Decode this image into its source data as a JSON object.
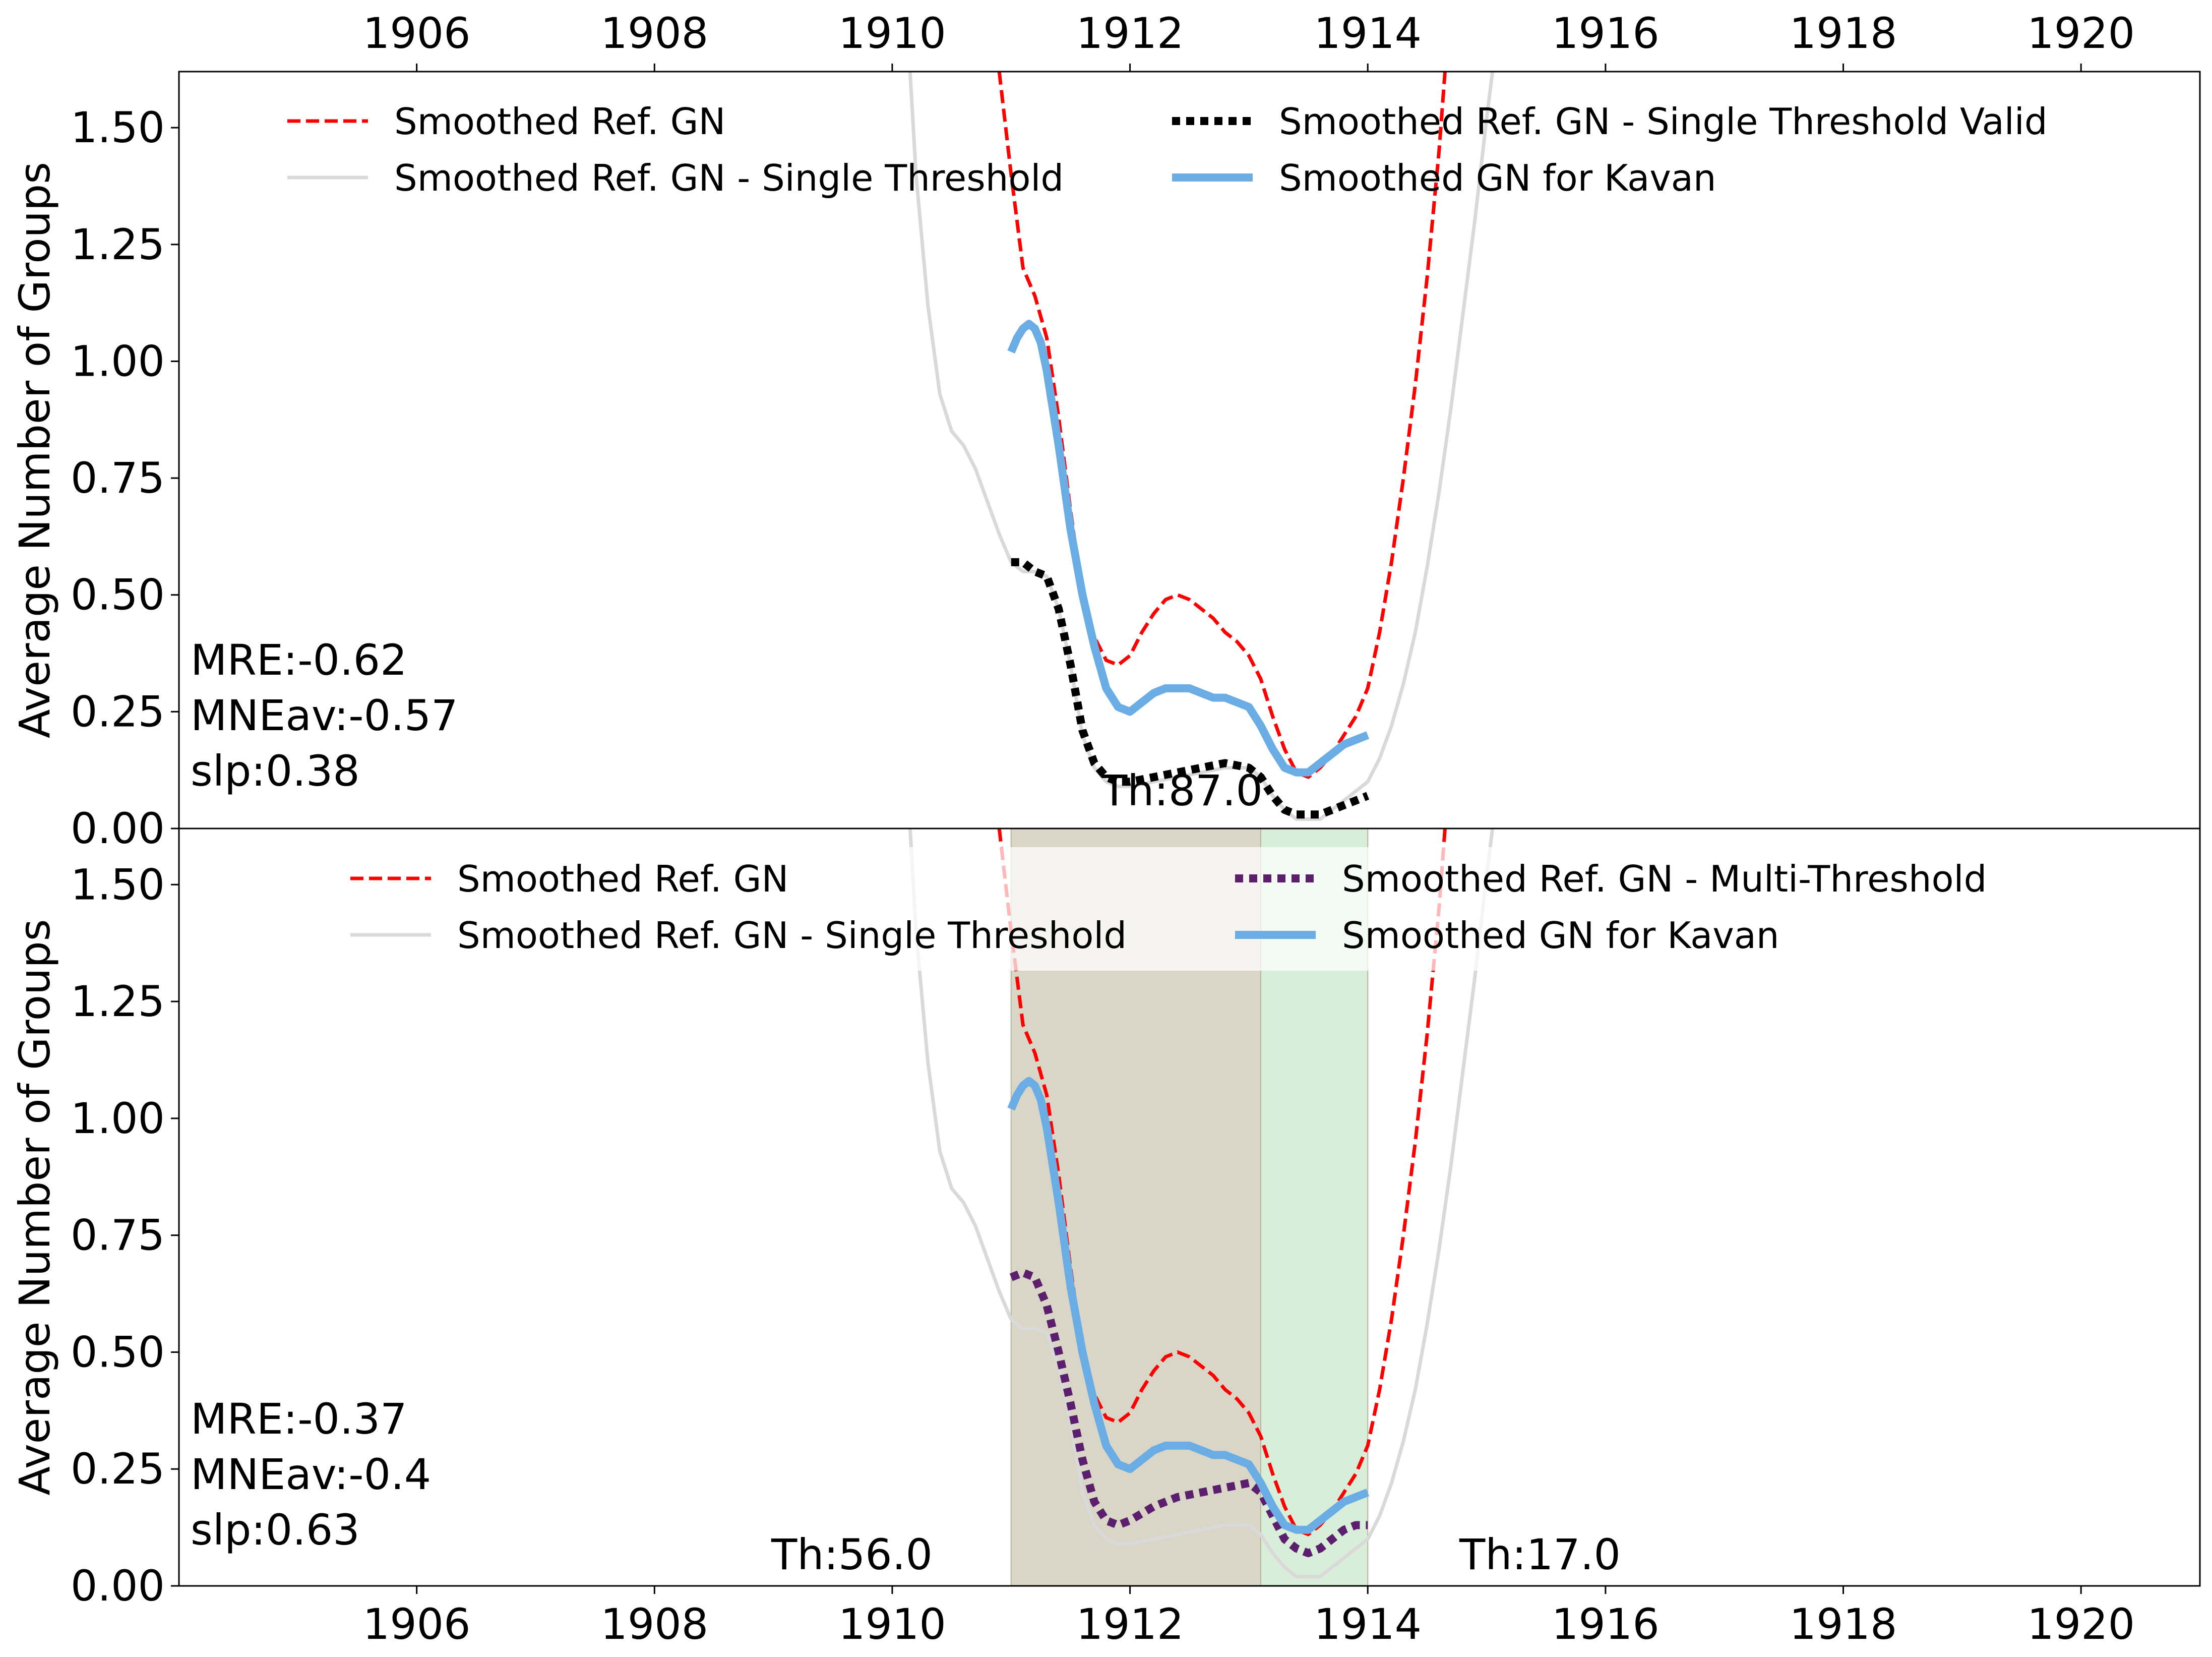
{
  "chart_data": [
    {
      "type": "line",
      "ylabel": "Average Number of Groups",
      "xlim": [
        1904,
        1921
      ],
      "ylim": [
        0,
        1.62
      ],
      "x_ticks": [
        1906,
        1908,
        1910,
        1912,
        1914,
        1916,
        1918,
        1920
      ],
      "y_ticks": [
        "0.00",
        "0.25",
        "0.50",
        "0.75",
        "1.00",
        "1.25",
        "1.50"
      ],
      "legend_position": "top",
      "series": [
        {
          "name": "Smoothed Ref. GN",
          "color": "#ff0000",
          "style": "dashed",
          "x": [
            1910.9,
            1911.0,
            1911.1,
            1911.2,
            1911.3,
            1911.4,
            1911.5,
            1911.6,
            1911.7,
            1911.8,
            1911.9,
            1912.0,
            1912.1,
            1912.2,
            1912.3,
            1912.4,
            1912.5,
            1912.6,
            1912.7,
            1912.8,
            1912.9,
            1913.0,
            1913.1,
            1913.2,
            1913.3,
            1913.4,
            1913.5,
            1913.6,
            1913.7,
            1913.8,
            1913.9,
            1914.0,
            1914.1,
            1914.2,
            1914.3,
            1914.4,
            1914.5,
            1914.6,
            1914.65
          ],
          "y": [
            1.62,
            1.4,
            1.2,
            1.14,
            1.05,
            0.88,
            0.68,
            0.5,
            0.41,
            0.36,
            0.35,
            0.37,
            0.42,
            0.46,
            0.49,
            0.5,
            0.49,
            0.47,
            0.45,
            0.42,
            0.4,
            0.37,
            0.32,
            0.24,
            0.17,
            0.12,
            0.11,
            0.13,
            0.16,
            0.2,
            0.24,
            0.3,
            0.42,
            0.57,
            0.75,
            0.95,
            1.18,
            1.45,
            1.62
          ]
        },
        {
          "name": "Smoothed Ref. GN - Single Threshold",
          "color": "#d9d9d9",
          "style": "solid",
          "x": [
            1910.15,
            1910.2,
            1910.3,
            1910.4,
            1910.5,
            1910.6,
            1910.7,
            1910.8,
            1910.9,
            1911.0,
            1911.1,
            1911.2,
            1911.3,
            1911.4,
            1911.5,
            1911.6,
            1911.7,
            1911.8,
            1911.9,
            1912.0,
            1912.2,
            1912.4,
            1912.6,
            1912.8,
            1913.0,
            1913.1,
            1913.2,
            1913.3,
            1913.4,
            1913.5,
            1913.6,
            1913.7,
            1913.8,
            1913.9,
            1914.0,
            1914.1,
            1914.2,
            1914.3,
            1914.4,
            1914.5,
            1914.6,
            1914.7,
            1914.8,
            1914.9,
            1915.0,
            1915.05
          ],
          "y": [
            1.62,
            1.4,
            1.12,
            0.93,
            0.85,
            0.82,
            0.77,
            0.7,
            0.63,
            0.57,
            0.55,
            0.55,
            0.54,
            0.47,
            0.35,
            0.2,
            0.13,
            0.1,
            0.09,
            0.09,
            0.1,
            0.11,
            0.12,
            0.13,
            0.13,
            0.11,
            0.07,
            0.04,
            0.02,
            0.02,
            0.02,
            0.04,
            0.06,
            0.08,
            0.1,
            0.15,
            0.22,
            0.31,
            0.42,
            0.56,
            0.72,
            0.9,
            1.1,
            1.3,
            1.52,
            1.62
          ]
        },
        {
          "name": "Smoothed Ref. GN - Single Threshold Valid",
          "color": "#000000",
          "style": "dotted",
          "x": [
            1911.0,
            1911.1,
            1911.2,
            1911.3,
            1911.4,
            1911.5,
            1911.6,
            1911.7,
            1911.8,
            1911.9,
            1912.0,
            1912.2,
            1912.4,
            1912.6,
            1912.8,
            1913.0,
            1913.1,
            1913.2,
            1913.3,
            1913.4,
            1913.5,
            1913.6,
            1913.7,
            1913.8,
            1913.9,
            1914.0
          ],
          "y": [
            0.57,
            0.57,
            0.55,
            0.54,
            0.47,
            0.35,
            0.21,
            0.14,
            0.11,
            0.1,
            0.1,
            0.11,
            0.12,
            0.13,
            0.14,
            0.13,
            0.11,
            0.07,
            0.04,
            0.03,
            0.03,
            0.03,
            0.04,
            0.05,
            0.06,
            0.07
          ]
        },
        {
          "name": "Smoothed GN for Kavan",
          "color": "#6aade4",
          "style": "solid-thick",
          "x": [
            1911.0,
            1911.05,
            1911.1,
            1911.15,
            1911.2,
            1911.25,
            1911.3,
            1911.4,
            1911.5,
            1911.6,
            1911.7,
            1911.8,
            1911.9,
            1912.0,
            1912.1,
            1912.2,
            1912.3,
            1912.4,
            1912.5,
            1912.6,
            1912.7,
            1912.8,
            1912.9,
            1913.0,
            1913.1,
            1913.2,
            1913.3,
            1913.4,
            1913.5,
            1913.6,
            1913.7,
            1913.8,
            1913.9,
            1914.0
          ],
          "y": [
            1.02,
            1.05,
            1.07,
            1.08,
            1.07,
            1.04,
            0.98,
            0.82,
            0.64,
            0.5,
            0.39,
            0.3,
            0.26,
            0.25,
            0.27,
            0.29,
            0.3,
            0.3,
            0.3,
            0.29,
            0.28,
            0.28,
            0.27,
            0.26,
            0.22,
            0.17,
            0.13,
            0.12,
            0.12,
            0.14,
            0.16,
            0.18,
            0.19,
            0.2
          ]
        }
      ],
      "annotations": [
        "MRE:-0.62",
        "MNEav:-0.57",
        "slp:0.38",
        "Th:87.0"
      ]
    },
    {
      "type": "line",
      "ylabel": "Average Number of Groups",
      "xlim": [
        1904,
        1921
      ],
      "ylim": [
        0,
        1.62
      ],
      "x_ticks": [
        1906,
        1908,
        1910,
        1912,
        1914,
        1916,
        1918,
        1920
      ],
      "y_ticks": [
        "0.00",
        "0.25",
        "0.50",
        "0.75",
        "1.00",
        "1.25",
        "1.50"
      ],
      "legend_position": "top",
      "shaded_regions": [
        {
          "x": [
            1911.0,
            1913.1
          ],
          "color": "#d9d6c8"
        },
        {
          "x": [
            1913.1,
            1914.0
          ],
          "color": "#d8eed8"
        }
      ],
      "series": [
        {
          "name": "Smoothed Ref. GN",
          "color": "#ff0000",
          "style": "dashed",
          "x": [
            1910.9,
            1911.0,
            1911.1,
            1911.2,
            1911.3,
            1911.4,
            1911.5,
            1911.6,
            1911.7,
            1911.8,
            1911.9,
            1912.0,
            1912.1,
            1912.2,
            1912.3,
            1912.4,
            1912.5,
            1912.6,
            1912.7,
            1912.8,
            1912.9,
            1913.0,
            1913.1,
            1913.2,
            1913.3,
            1913.4,
            1913.5,
            1913.6,
            1913.7,
            1913.8,
            1913.9,
            1914.0,
            1914.1,
            1914.2,
            1914.3,
            1914.4,
            1914.5,
            1914.6,
            1914.65
          ],
          "y": [
            1.62,
            1.4,
            1.2,
            1.14,
            1.05,
            0.88,
            0.68,
            0.5,
            0.41,
            0.36,
            0.35,
            0.37,
            0.42,
            0.46,
            0.49,
            0.5,
            0.49,
            0.47,
            0.45,
            0.42,
            0.4,
            0.37,
            0.32,
            0.24,
            0.17,
            0.12,
            0.11,
            0.13,
            0.16,
            0.2,
            0.24,
            0.3,
            0.42,
            0.57,
            0.75,
            0.95,
            1.18,
            1.45,
            1.62
          ]
        },
        {
          "name": "Smoothed Ref. GN - Single Threshold",
          "color": "#d9d9d9",
          "style": "solid",
          "x": [
            1910.15,
            1910.2,
            1910.3,
            1910.4,
            1910.5,
            1910.6,
            1910.7,
            1910.8,
            1910.9,
            1911.0,
            1911.1,
            1911.2,
            1911.3,
            1911.4,
            1911.5,
            1911.6,
            1911.7,
            1911.8,
            1911.9,
            1912.0,
            1912.2,
            1912.4,
            1912.6,
            1912.8,
            1913.0,
            1913.1,
            1913.2,
            1913.3,
            1913.4,
            1913.5,
            1913.6,
            1913.7,
            1913.8,
            1913.9,
            1914.0,
            1914.1,
            1914.2,
            1914.3,
            1914.4,
            1914.5,
            1914.6,
            1914.7,
            1914.8,
            1914.9,
            1915.0,
            1915.05
          ],
          "y": [
            1.62,
            1.4,
            1.12,
            0.93,
            0.85,
            0.82,
            0.77,
            0.7,
            0.63,
            0.57,
            0.55,
            0.55,
            0.54,
            0.47,
            0.35,
            0.2,
            0.13,
            0.1,
            0.09,
            0.09,
            0.1,
            0.11,
            0.12,
            0.13,
            0.13,
            0.11,
            0.07,
            0.04,
            0.02,
            0.02,
            0.02,
            0.04,
            0.06,
            0.08,
            0.1,
            0.15,
            0.22,
            0.31,
            0.42,
            0.56,
            0.72,
            0.9,
            1.1,
            1.3,
            1.52,
            1.62
          ]
        },
        {
          "name": "Smoothed Ref. GN - Multi-Threshold",
          "color": "#5c1f6e",
          "style": "dotted",
          "x": [
            1911.0,
            1911.1,
            1911.2,
            1911.3,
            1911.4,
            1911.5,
            1911.6,
            1911.7,
            1911.8,
            1911.9,
            1912.0,
            1912.2,
            1912.4,
            1912.6,
            1912.8,
            1913.0,
            1913.1,
            1913.2,
            1913.3,
            1913.4,
            1913.5,
            1913.6,
            1913.7,
            1913.8,
            1913.9,
            1914.0
          ],
          "y": [
            0.66,
            0.67,
            0.66,
            0.6,
            0.5,
            0.39,
            0.27,
            0.18,
            0.14,
            0.13,
            0.14,
            0.17,
            0.19,
            0.2,
            0.21,
            0.22,
            0.2,
            0.15,
            0.1,
            0.08,
            0.07,
            0.08,
            0.1,
            0.12,
            0.13,
            0.13
          ]
        },
        {
          "name": "Smoothed GN for Kavan",
          "color": "#6aade4",
          "style": "solid-thick",
          "x": [
            1911.0,
            1911.05,
            1911.1,
            1911.15,
            1911.2,
            1911.25,
            1911.3,
            1911.4,
            1911.5,
            1911.6,
            1911.7,
            1911.8,
            1911.9,
            1912.0,
            1912.1,
            1912.2,
            1912.3,
            1912.4,
            1912.5,
            1912.6,
            1912.7,
            1912.8,
            1912.9,
            1913.0,
            1913.1,
            1913.2,
            1913.3,
            1913.4,
            1913.5,
            1913.6,
            1913.7,
            1913.8,
            1913.9,
            1914.0
          ],
          "y": [
            1.02,
            1.05,
            1.07,
            1.08,
            1.07,
            1.04,
            0.98,
            0.82,
            0.64,
            0.5,
            0.39,
            0.3,
            0.26,
            0.25,
            0.27,
            0.29,
            0.3,
            0.3,
            0.3,
            0.29,
            0.28,
            0.28,
            0.27,
            0.26,
            0.22,
            0.17,
            0.13,
            0.12,
            0.12,
            0.14,
            0.16,
            0.18,
            0.19,
            0.2
          ]
        }
      ],
      "annotations": [
        "MRE:-0.37",
        "MNEav:-0.4",
        "slp:0.63",
        "Th:56.0",
        "Th:17.0"
      ]
    }
  ]
}
